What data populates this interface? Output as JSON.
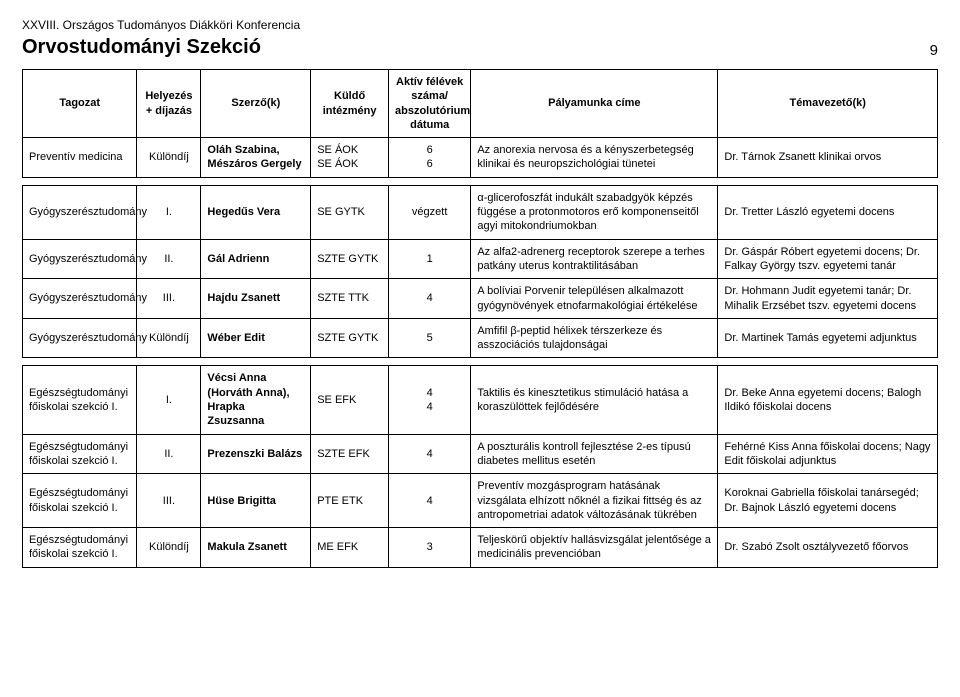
{
  "header": {
    "conference": "XXVIII. Országos Tudományos Diákköri Konferencia",
    "section": "Orvostudományi Szekció",
    "page": "9"
  },
  "columns": {
    "c1": "Tagozat",
    "c2": "Helyezés + díjazás",
    "c3": "Szerző(k)",
    "c4": "Küldő intézmény",
    "c5": "Aktív félévek száma/ abszolutórium dátuma",
    "c6": "Pályamunka címe",
    "c7": "Témavezető(k)"
  },
  "rows": [
    {
      "tagozat": "Preventív medicina",
      "helyezes": "Különdíj",
      "szerzo": "Oláh Szabina, Mészáros Gergely",
      "intezmeny": "SE ÁOK SE ÁOK",
      "felev": "6 6",
      "cim": "Az anorexia nervosa és a kényszerbetegség klinikai és neuropszichológiai tünetei",
      "temavezeto": "Dr. Tárnok Zsanett klinikai orvos"
    },
    {
      "tagozat": "Gyógyszerésztudomány",
      "helyezes": "I.",
      "szerzo": "Hegedűs Vera",
      "intezmeny": "SE GYTK",
      "felev": "végzett",
      "cim": "α-glicerofoszfát indukált szabadgyök képzés függése a protonmotoros erő komponenseitől agyi mitokondriumokban",
      "temavezeto": "Dr. Tretter László egyetemi docens"
    },
    {
      "tagozat": "Gyógyszerésztudomány",
      "helyezes": "II.",
      "szerzo": "Gál Adrienn",
      "intezmeny": "SZTE GYTK",
      "felev": "1",
      "cim": "Az alfa2-adrenerg receptorok szerepe a terhes patkány uterus kontraktilitásában",
      "temavezeto": "Dr. Gáspár Róbert egyetemi docens; Dr. Falkay György tszv. egyetemi tanár"
    },
    {
      "tagozat": "Gyógyszerésztudomány",
      "helyezes": "III.",
      "szerzo": "Hajdu Zsanett",
      "intezmeny": "SZTE TTK",
      "felev": "4",
      "cim": "A bolíviai Porvenir településen alkalmazott gyógynövények etnofarmakológiai értékelése",
      "temavezeto": "Dr. Hohmann Judit egyetemi tanár; Dr. Mihalik Erzsébet tszv. egyetemi docens"
    },
    {
      "tagozat": "Gyógyszerésztudomány",
      "helyezes": "Különdíj",
      "szerzo": "Wéber Edit",
      "intezmeny": "SZTE GYTK",
      "felev": "5",
      "cim": "Amfifil β-peptid hélixek térszerkeze és asszociációs tulajdonságai",
      "temavezeto": "Dr. Martinek Tamás egyetemi adjunktus"
    },
    {
      "tagozat": "Egészségtudományi főiskolai szekció I.",
      "helyezes": "I.",
      "szerzo": "Vécsi Anna (Horváth Anna), Hrapka Zsuzsanna",
      "intezmeny": "SE EFK",
      "felev": "4 4",
      "cim": "Taktilis és kinesztetikus stimuláció hatása a koraszülöttek fejlődésére",
      "temavezeto": "Dr. Beke Anna egyetemi docens; Balogh Ildikó főiskolai docens"
    },
    {
      "tagozat": "Egészségtudományi főiskolai szekció I.",
      "helyezes": "II.",
      "szerzo": "Prezenszki Balázs",
      "intezmeny": "SZTE EFK",
      "felev": "4",
      "cim": "A poszturális kontroll fejlesztése 2-es típusú diabetes mellitus esetén",
      "temavezeto": "Fehérné Kiss Anna főiskolai docens; Nagy Edit főiskolai adjunktus"
    },
    {
      "tagozat": "Egészségtudományi főiskolai szekció I.",
      "helyezes": "III.",
      "szerzo": "Hüse Brigitta",
      "intezmeny": "PTE ETK",
      "felev": "4",
      "cim": "Preventív mozgásprogram hatásának vizsgálata elhízott nőknél a fizikai fittség és az antropometriai adatok változásának tükrében",
      "temavezeto": "Koroknai Gabriella főiskolai tanársegéd; Dr. Bajnok László egyetemi docens"
    },
    {
      "tagozat": "Egészségtudományi főiskolai szekció I.",
      "helyezes": "Különdíj",
      "szerzo": "Makula Zsanett",
      "intezmeny": "ME EFK",
      "felev": "3",
      "cim": "Teljeskörű objektív hallásvizsgálat jelentősége a medicinális prevencióban",
      "temavezeto": "Dr. Szabó Zsolt osztályvezető főorvos"
    }
  ]
}
